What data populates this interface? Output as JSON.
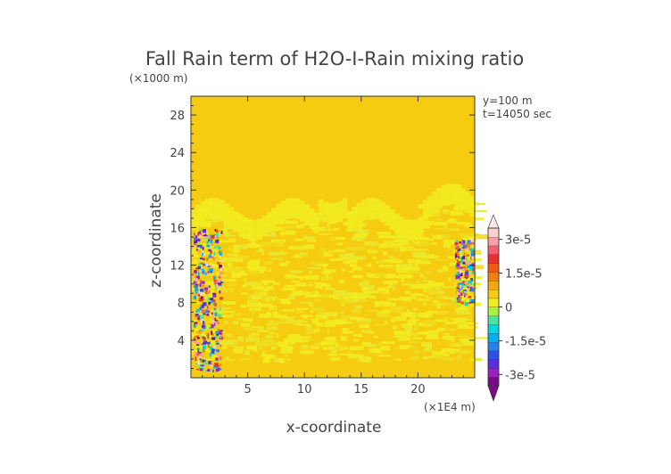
{
  "chart_data": {
    "type": "heatmap",
    "title": "Fall Rain term of H2O-I-Rain mixing ratio",
    "xlabel": "x-coordinate",
    "ylabel": "z-coordinate",
    "x_unit": "(×1E4 m)",
    "y_unit": "(×1000 m)",
    "annotations": [
      "y=100 m",
      "t=14050 sec"
    ],
    "xlim": [
      0,
      25
    ],
    "ylim": [
      0,
      30
    ],
    "x_ticks": [
      5,
      10,
      15,
      20
    ],
    "y_ticks": [
      4,
      8,
      12,
      16,
      20,
      24,
      28
    ],
    "colorbar": {
      "range": [
        -3.5e-05,
        3.5e-05
      ],
      "tick_values": [
        3e-05,
        1.5e-05,
        0,
        -1.5e-05,
        -3e-05
      ],
      "tick_labels": [
        "3e-5",
        "1.5e-5",
        "0",
        "-1.5e-5",
        "-3e-5"
      ],
      "extend": "both",
      "palette": [
        "#7a0a8a",
        "#9a20c0",
        "#5a2ed8",
        "#2f4fe8",
        "#2a80f0",
        "#00b0f0",
        "#00d8e0",
        "#40e8a0",
        "#a8f040",
        "#f2ec20",
        "#f6cc10",
        "#f6a810",
        "#f08010",
        "#f05a10",
        "#e83030",
        "#f06070",
        "#f8a0a8",
        "#fbd0d0"
      ]
    },
    "background_value": 0,
    "features": [
      {
        "name": "cloud-layer",
        "z_range": [
          0,
          19.5
        ],
        "sign": "slightly-positive"
      },
      {
        "name": "left-rain-shaft",
        "x_range": [
          0.2,
          2.6
        ],
        "z_range": [
          0.8,
          16
        ],
        "sign": "mixed"
      },
      {
        "name": "right-rain-shaft",
        "x_range": [
          23.2,
          24.8
        ],
        "z_range": [
          8,
          14.8
        ],
        "sign": "mixed"
      }
    ]
  }
}
